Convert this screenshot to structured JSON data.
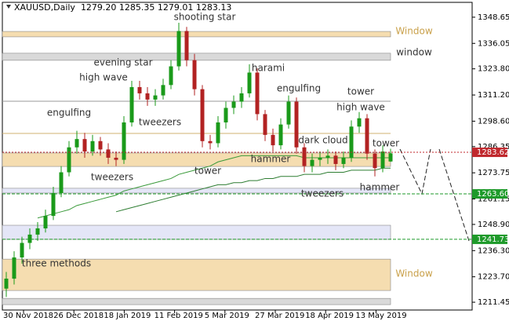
{
  "chart_data": {
    "type": "candlestick",
    "title": "XAUUSD,Daily  1279.20 1285.35 1279.01 1283.13",
    "ylim": [
      1207.7,
      1355.8
    ],
    "yticks": [
      1348.65,
      1336.05,
      {
        "value": 1323.8,
        "label": "1323.80"
      },
      {
        "value": 1311.2,
        "label": "1311.20"
      },
      {
        "value": 1298.6,
        "label": "1298.60"
      },
      1286.35,
      1273.75,
      {
        "value": 1261.15,
        "label": "1261.15"
      },
      {
        "value": 1248.9,
        "label": "1248.90"
      },
      {
        "value": 1236.3,
        "label": "1236.30"
      },
      {
        "value": 1223.7,
        "label": "1223.70"
      },
      1211.45
    ],
    "xtick_labels": [
      "30 Nov 2018",
      "26 Dec 2018",
      "18 Jan 2019",
      "11 Feb 2019",
      "5 Mar 2019",
      "27 Mar 2019",
      "18 Apr 2019",
      "13 May 2019"
    ],
    "up_color": "#1a9a1a",
    "down_color": "#b22222",
    "open": [
      1218,
      1222.8,
      1233,
      1240,
      1244,
      1247,
      1253,
      1264,
      1274,
      1286,
      1290,
      1284,
      1289,
      1285,
      1281,
      1280,
      1298,
      1315,
      1312,
      1309,
      1311,
      1316,
      1325,
      1342,
      1328,
      1314,
      1289,
      1288,
      1298,
      1305,
      1308,
      1312,
      1322,
      1302,
      1292,
      1287,
      1297,
      1308,
      1286,
      1277,
      1280,
      1281,
      1282,
      1278,
      1281,
      1296,
      1300,
      1283,
      1276,
      1279.2
    ],
    "high": [
      1226,
      1236,
      1243,
      1247,
      1250,
      1256,
      1267,
      1277,
      1289,
      1294,
      1293,
      1292,
      1291,
      1288,
      1284,
      1301,
      1318,
      1318,
      1315,
      1314,
      1319,
      1328,
      1346,
      1344,
      1331,
      1316,
      1292,
      1301,
      1308,
      1311,
      1315,
      1326,
      1324,
      1304,
      1295,
      1300,
      1311,
      1310,
      1288,
      1283,
      1284,
      1285,
      1284,
      1284,
      1299,
      1303,
      1302,
      1285,
      1287,
      1285.35
    ],
    "low": [
      1214,
      1220,
      1230,
      1237,
      1241,
      1245,
      1251,
      1262,
      1272,
      1283,
      1281,
      1282,
      1282,
      1278,
      1277,
      1278,
      1296,
      1309,
      1306,
      1306,
      1309,
      1314,
      1323,
      1325,
      1311,
      1286,
      1285,
      1286,
      1295,
      1302,
      1305,
      1310,
      1299,
      1289,
      1284,
      1285,
      1295,
      1283,
      1274,
      1274,
      1277,
      1278,
      1275,
      1276,
      1279,
      1293,
      1280,
      1272,
      1274,
      1279.01
    ],
    "close": [
      1222.8,
      1233,
      1240,
      1244,
      1247,
      1253,
      1264,
      1274,
      1286,
      1290,
      1284,
      1289,
      1285,
      1281,
      1280,
      1298,
      1315,
      1312,
      1309,
      1311,
      1316,
      1325,
      1342,
      1328,
      1314,
      1289,
      1288,
      1298,
      1305,
      1308,
      1312,
      1322,
      1302,
      1292,
      1287,
      1297,
      1308,
      1286,
      1277,
      1280,
      1281,
      1282,
      1278,
      1281,
      1296,
      1300,
      1283,
      1276,
      1284,
      1283.13
    ],
    "ma": [
      {
        "color": "#3a9a3a",
        "values": [
          null,
          null,
          null,
          null,
          1252,
          1253,
          1254,
          1255,
          1256,
          1258,
          1259,
          1260,
          1261,
          1262,
          1263,
          1265,
          1266,
          1267,
          1268,
          1269,
          1270,
          1271,
          1273,
          1274,
          1275,
          1276,
          1277,
          1279,
          1280,
          1281,
          1282,
          1282,
          1282,
          1282,
          1282,
          1282,
          1282,
          1282,
          1281,
          1281,
          1281,
          1281,
          1281,
          1281,
          1281,
          1281,
          1281,
          1281,
          1281,
          1281
        ]
      },
      {
        "color": "#2e7d32",
        "values": [
          null,
          null,
          null,
          null,
          null,
          null,
          null,
          null,
          null,
          null,
          null,
          null,
          null,
          null,
          1255,
          1256,
          1257,
          1258,
          1259,
          1260,
          1261,
          1262,
          1263,
          1264,
          1265,
          1266,
          1267,
          1268,
          1268,
          1269,
          1269,
          1270,
          1270,
          1271,
          1271,
          1272,
          1272,
          1272,
          1273,
          1273,
          1273,
          1274,
          1274,
          1274,
          1275,
          1275,
          1275,
          1275,
          1276,
          1276
        ]
      }
    ],
    "zones": [
      {
        "range": [
          1339.2,
          1341.8
        ],
        "color": "#f5ddb0"
      },
      {
        "range": [
          1327.9,
          1331.3
        ],
        "color": "#d9d9d9"
      },
      {
        "range": [
          1276.8,
          1283.3
        ],
        "color": "#f5ddb0"
      },
      {
        "range": [
          1264.0,
          1266.3
        ],
        "color": "#e4e6f7"
      },
      {
        "range": [
          1241.7,
          1248.5
        ],
        "color": "#e4e6f7"
      },
      {
        "range": [
          1217.1,
          1232.2
        ],
        "color": "#f5ddb0"
      },
      {
        "range": [
          1210.3,
          1213.3
        ],
        "color": "#d9d9d9"
      }
    ],
    "levels": [
      {
        "value": 1308.2,
        "color": "#999999"
      },
      {
        "value": 1292.7,
        "color": "#d2b070"
      }
    ],
    "price_markers": [
      {
        "value": 1283.62,
        "color": "#c0282d"
      },
      {
        "value": 1263.6,
        "label": "1263.60",
        "color": "#1e9a2a"
      },
      {
        "value": 1241.73,
        "color": "#1e9a2a"
      }
    ],
    "annotations": [
      {
        "text": "shooting star",
        "color": "#333333"
      },
      {
        "text": "evening star",
        "color": "#333333"
      },
      {
        "text": "high wave",
        "color": "#333333"
      },
      {
        "text": "harami",
        "color": "#333333"
      },
      {
        "text": "engulfing",
        "color": "#333333"
      },
      {
        "text": "engulfing",
        "color": "#333333"
      },
      {
        "text": "tower",
        "color": "#333333"
      },
      {
        "text": "high wave",
        "color": "#333333"
      },
      {
        "text": "tweezers",
        "color": "#333333"
      },
      {
        "text": "tweezers",
        "color": "#333333"
      },
      {
        "text": "tower",
        "color": "#333333"
      },
      {
        "text": "hammer",
        "color": "#333333"
      },
      {
        "text": "dark cloud",
        "color": "#333333"
      },
      {
        "text": "tower",
        "color": "#333333"
      },
      {
        "text": "tweezers",
        "color": "#333333"
      },
      {
        "text": "hammer",
        "color": "#333333"
      },
      {
        "text": "three methods",
        "color": "#333333"
      },
      {
        "text": "Window",
        "color": "#c9a04a"
      },
      {
        "text": "window",
        "color": "#333333"
      },
      {
        "text": "Window",
        "color": "#c9a04a"
      }
    ]
  }
}
